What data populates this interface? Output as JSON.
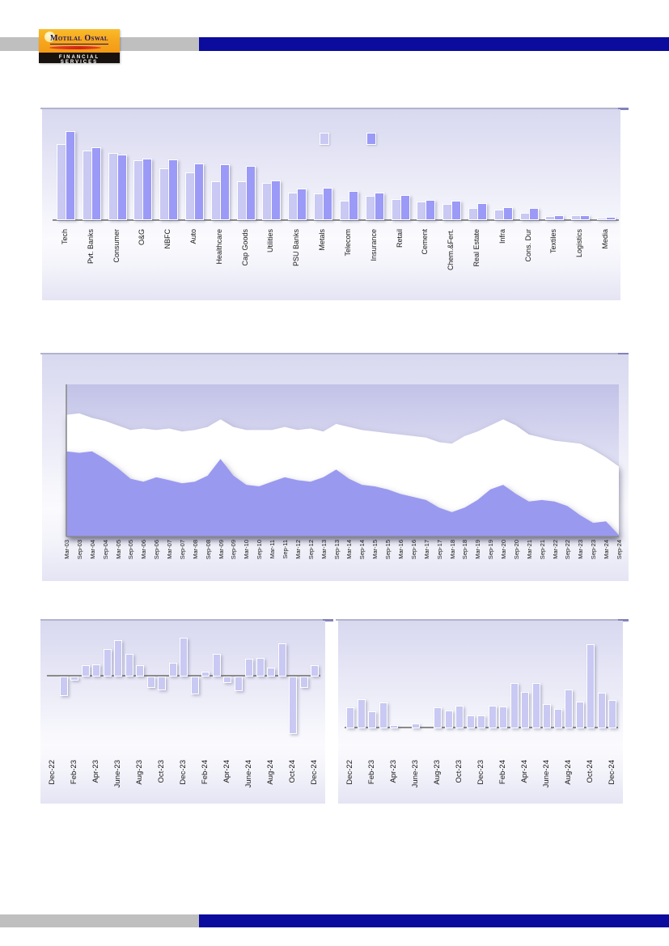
{
  "header": {
    "logo": {
      "title": "Motilal Oswal",
      "subtitle": "FINANCIAL SERVICES"
    }
  },
  "footer": {},
  "colors": {
    "navy_band": "#0b0b9d",
    "gray_band": "#bfbfbf",
    "bar_light": "#c9c9f3",
    "bar_dark": "#9b9af7",
    "area_fill": "#9a99f0",
    "band_fill": "#ffffff",
    "axis": "#8a8a8a",
    "label_text": "#1a1a1a",
    "logo_orange": "#f6a41c",
    "logo_red": "#d32413",
    "logo_navy": "#1b1464",
    "logo_black": "#17120e"
  },
  "chart_data": [
    {
      "id": "sector-grouped-bars",
      "type": "bar",
      "title": "",
      "xlabel": "",
      "ylabel": "",
      "unit": "relative height (value axis not shown)",
      "ylim": [
        0,
        115
      ],
      "grid": false,
      "legend": {
        "position": "top-center",
        "labels": [
          "",
          ""
        ],
        "colors": [
          "#c9c9f3",
          "#9b9af7"
        ]
      },
      "categories": [
        "Tech",
        "Pvt. Banks",
        "Consumer",
        "O&G",
        "NBFC",
        "Auto",
        "Healthcare",
        "Cap Goods",
        "Utilities",
        "PSU Banks",
        "Metals",
        "Telecom",
        "Insurance",
        "Retail",
        "Cement",
        "Chem.&Fert.",
        "Real Estate",
        "Infra",
        "Cons. Dur",
        "Textiles",
        "Logistics",
        "Media"
      ],
      "series": [
        {
          "name": "series-1",
          "color": "#c9c9f3",
          "values": [
            93,
            85,
            82,
            73,
            63,
            58,
            47,
            47,
            45,
            33,
            32,
            23,
            29,
            25,
            22,
            19,
            14,
            12,
            8,
            4,
            5,
            2
          ]
        },
        {
          "name": "series-2",
          "color": "#9b9af7",
          "values": [
            109,
            89,
            80,
            75,
            74,
            69,
            68,
            66,
            48,
            38,
            39,
            35,
            33,
            30,
            24,
            23,
            20,
            15,
            14,
            5,
            5,
            3
          ]
        }
      ]
    },
    {
      "id": "long-term-area-band",
      "type": "area",
      "title": "",
      "xlabel": "",
      "ylabel": "",
      "unit": "percent of plot height (value axis not shown)",
      "ylim": [
        0,
        100
      ],
      "grid": false,
      "x": [
        "Mar-03",
        "Sep-03",
        "Mar-04",
        "Sep-04",
        "Mar-05",
        "Sep-05",
        "Mar-06",
        "Sep-06",
        "Mar-07",
        "Sep-07",
        "Mar-08",
        "Sep-08",
        "Mar-09",
        "Sep-09",
        "Mar-10",
        "Sep-10",
        "Mar-11",
        "Sep-11",
        "Mar-12",
        "Sep-12",
        "Mar-13",
        "Sep-13",
        "Mar-14",
        "Sep-14",
        "Mar-15",
        "Sep-15",
        "Mar-16",
        "Sep-16",
        "Mar-17",
        "Sep-17",
        "Mar-18",
        "Sep-18",
        "Mar-19",
        "Sep-19",
        "Mar-20",
        "Sep-20",
        "Mar-21",
        "Sep-21",
        "Mar-22",
        "Sep-22",
        "Mar-23",
        "Sep-23",
        "Mar-24",
        "Sep-24"
      ],
      "series": [
        {
          "name": "upper-line-white-band",
          "color": "#ffffff",
          "values": [
            80,
            81,
            78,
            76,
            73,
            70,
            71,
            70,
            71,
            69,
            70,
            72,
            77,
            72,
            70,
            70,
            70,
            72,
            70,
            71,
            69,
            74,
            72,
            70,
            69,
            68,
            67,
            66,
            65,
            62,
            61,
            66,
            69,
            73,
            77,
            73,
            67,
            65,
            63,
            62,
            61,
            57,
            52,
            46
          ]
        },
        {
          "name": "lower-purple-area",
          "color": "#9a99f0",
          "values": [
            56,
            55,
            56,
            51,
            45,
            38,
            36,
            39,
            37,
            35,
            36,
            40,
            51,
            40,
            34,
            33,
            36,
            39,
            37,
            36,
            39,
            44,
            38,
            34,
            33,
            31,
            28,
            26,
            24,
            19,
            16,
            19,
            24,
            31,
            34,
            28,
            23,
            24,
            23,
            20,
            14,
            9,
            10,
            1
          ]
        }
      ]
    },
    {
      "id": "monthly-flows-left",
      "type": "bar",
      "title": "",
      "xlabel": "",
      "ylabel": "",
      "unit": "relative (value axis not shown)",
      "grid": false,
      "bars_per_tick": 2,
      "tick_labels": [
        "Dec-22",
        "Feb-23",
        "Apr-23",
        "June-23",
        "Aug-23",
        "Oct-23",
        "Dec-23",
        "Feb-24",
        "Apr-24",
        "June-24",
        "Aug-24",
        "Oct-24",
        "Dec-24"
      ],
      "values": [
        0,
        -3.5,
        -0.5,
        1.9,
        2.0,
        5.1,
        6.9,
        4.2,
        1.9,
        -2.0,
        -2.5,
        2.4,
        7.3,
        -3.2,
        0.6,
        4.1,
        -1.0,
        -2.6,
        3.2,
        3.4,
        1.5,
        6.2,
        -11.1,
        -2.0,
        1.9
      ],
      "bar_color": "#c9c9f3"
    },
    {
      "id": "monthly-flows-right",
      "type": "bar",
      "title": "",
      "xlabel": "",
      "ylabel": "",
      "unit": "relative (value axis not shown)",
      "grid": false,
      "bars_per_tick": 2,
      "tick_labels": [
        "Dec-22",
        "Feb-23",
        "Apr-23",
        "June-23",
        "Aug-23",
        "Oct-23",
        "Dec-23",
        "Feb-24",
        "Apr-24",
        "June-24",
        "Aug-24",
        "Oct-24",
        "Dec-24"
      ],
      "values": [
        3.0,
        4.2,
        2.4,
        3.8,
        0.3,
        -0.1,
        0.5,
        -0.1,
        3.0,
        2.5,
        3.3,
        1.8,
        1.7,
        3.3,
        3.1,
        6.7,
        5.4,
        6.8,
        3.5,
        2.8,
        5.8,
        3.9,
        12.8,
        5.3,
        4.1
      ],
      "bar_color": "#c9c9f3"
    }
  ]
}
